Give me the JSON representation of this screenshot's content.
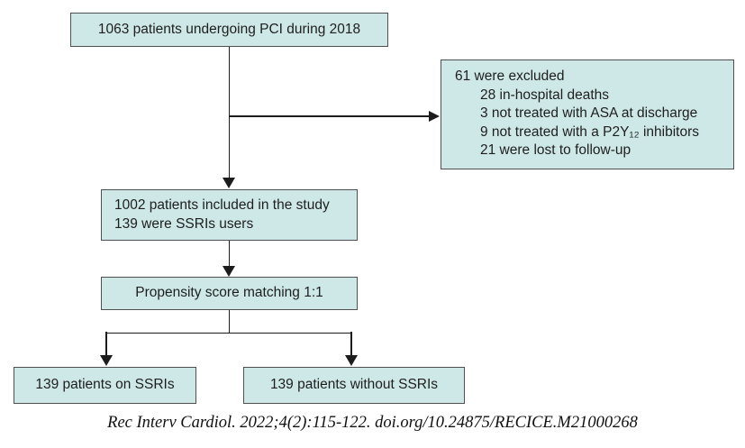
{
  "flowchart": {
    "boxes": {
      "pci": {
        "text": "1063 patients undergoing PCI during 2018"
      },
      "excluded": {
        "title": "61 were excluded",
        "items": [
          "28 in-hospital deaths",
          "3 not treated with ASA at discharge",
          "9 not treated with a P2Y₁₂ inhibitors",
          "21 were lost to follow-up"
        ]
      },
      "included": {
        "line1": "1002 patients included in the study",
        "line2": "139 were SSRIs users"
      },
      "propensity": {
        "text": "Propensity score matching 1:1"
      },
      "ssri": {
        "text": "139 patients on SSRIs"
      },
      "no_ssri": {
        "text": "139 patients without SSRIs"
      }
    },
    "citation": "Rec Interv Cardiol. 2022;4(2):115-122. doi.org/10.24875/RECICE.M21000268",
    "colors": {
      "box_fill": "#cee8e8",
      "box_border": "#4f4f4f",
      "connector": "#1c1c1c",
      "text": "#1e1e1e",
      "background": "#ffffff"
    }
  }
}
